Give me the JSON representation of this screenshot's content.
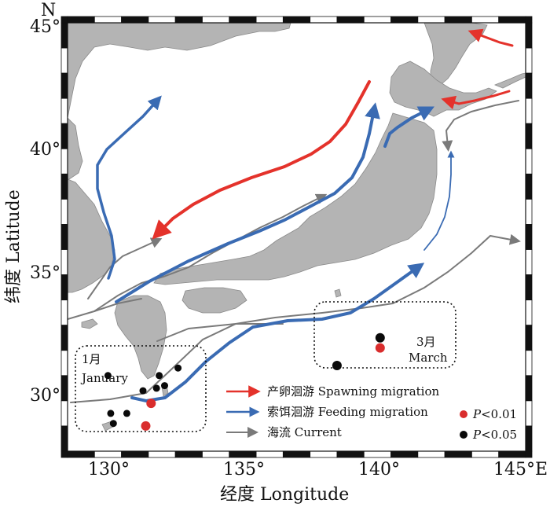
{
  "map": {
    "north_label": "N",
    "x_axis_title": "经度 Longitude",
    "y_axis_title": "纬度 Latitude",
    "x_ticks": [
      "130°",
      "135°",
      "140°",
      "145°E"
    ],
    "y_ticks": [
      "45°",
      "40°",
      "35°",
      "30°"
    ],
    "extent": {
      "lon": [
        128,
        145
      ],
      "lat": [
        28,
        45
      ]
    },
    "colors": {
      "ocean": "#ffffff",
      "land": "#b4b4b4",
      "spawning": "#e4322b",
      "feeding": "#3a6bb3",
      "current": "#7a7a7a",
      "p001": "#d92d2d",
      "p005": "#0a0a0a"
    }
  },
  "regions": {
    "january_cn": "1月",
    "january_en": "January",
    "march_cn": "3月",
    "march_en": "March"
  },
  "legend": {
    "spawning": "产卵洄游 Spawning migration",
    "feeding": "索饵洄游 Feeding migration",
    "current": "海流 Current",
    "p1_prefix": "P",
    "p1_suffix": "<0.01",
    "p2_prefix": "P",
    "p2_suffix": "<0.05"
  },
  "points": {
    "january_red": [
      [
        131.1,
        29.9
      ],
      [
        130.9,
        29.0
      ]
    ],
    "january_black": [
      [
        129.5,
        31.0
      ],
      [
        129.6,
        29.5
      ],
      [
        129.7,
        29.1
      ],
      [
        130.2,
        29.5
      ],
      [
        130.8,
        30.4
      ],
      [
        131.3,
        30.5
      ],
      [
        131.4,
        31.0
      ],
      [
        131.6,
        30.6
      ],
      [
        132.1,
        31.3
      ]
    ],
    "march_red": [
      [
        139.6,
        32.1
      ]
    ],
    "march_black": [
      [
        139.6,
        32.5
      ],
      [
        138.0,
        31.4
      ]
    ]
  }
}
